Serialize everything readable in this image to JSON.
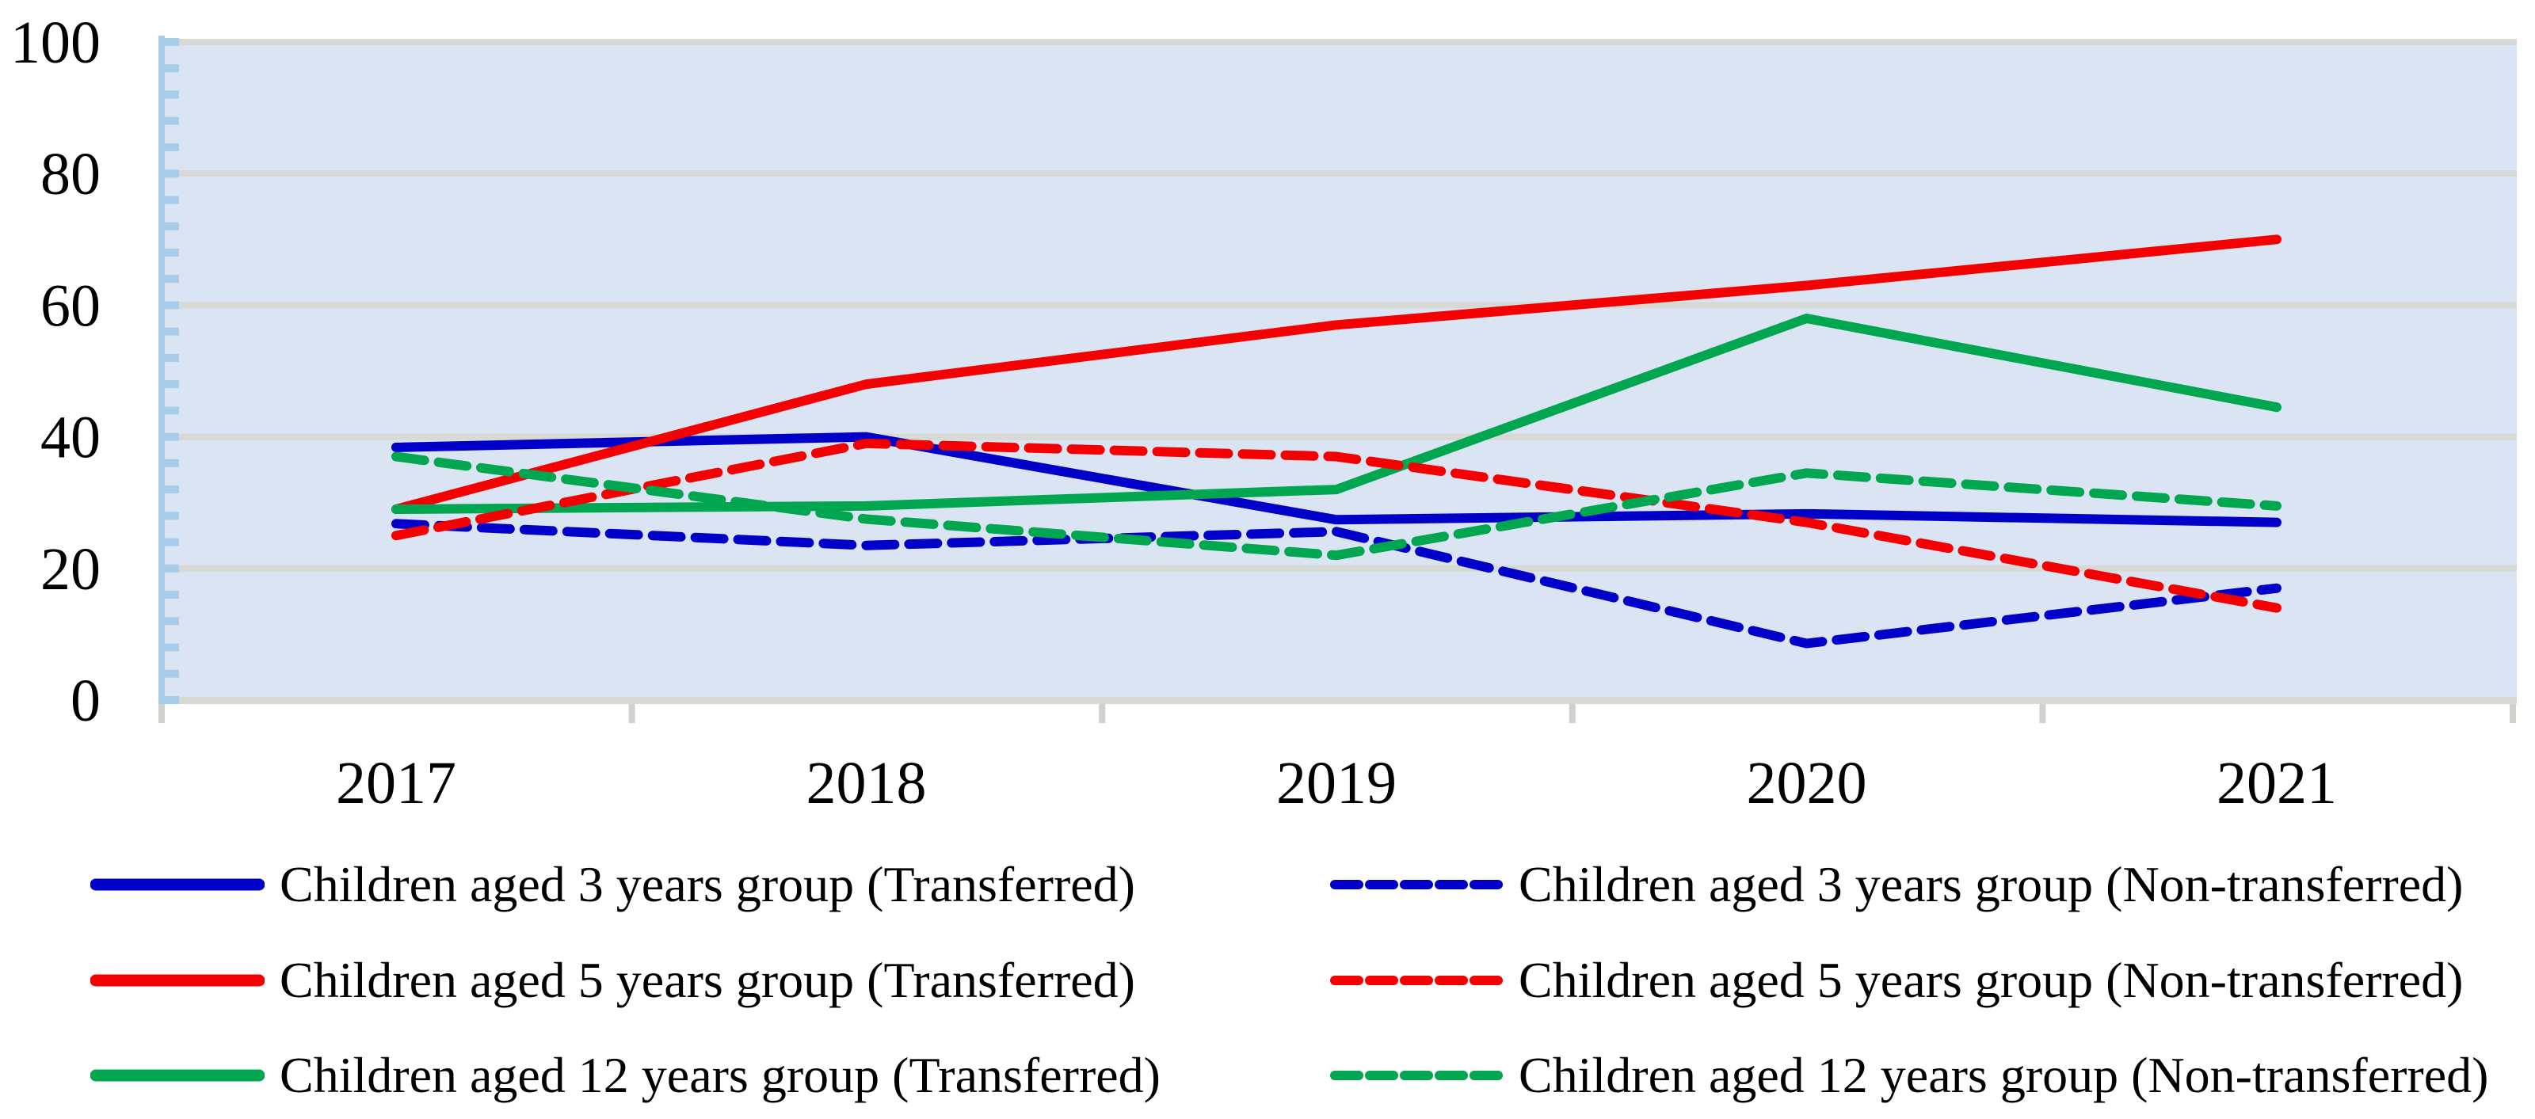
{
  "chart_data": {
    "type": "line",
    "title": "",
    "xlabel": "",
    "ylabel": "",
    "categories": [
      "2017",
      "2018",
      "2019",
      "2020",
      "2021"
    ],
    "y_axis": {
      "min": 0,
      "max": 100,
      "major_step": 20,
      "minor_step": 4,
      "tick_labels": [
        "100",
        "80",
        "60",
        "40",
        "20",
        "0"
      ]
    },
    "grid": "horizontal-major",
    "plot_background": "#dae4f2",
    "gridline_color": "#d8d8d4",
    "y_axis_line_color": "#a8cdea",
    "x_tick_color": "#d0d0cd",
    "series": [
      {
        "name": "Children aged 3 years group (Transferred)",
        "color": "#0000c8",
        "style": "solid",
        "values": [
          38.4,
          40.0,
          27.4,
          28.3,
          27.0
        ]
      },
      {
        "name": "Children aged 5 years group (Transferred)",
        "color": "#f40000",
        "style": "solid",
        "values": [
          29.0,
          48.0,
          57.0,
          63.0,
          70.0
        ]
      },
      {
        "name": "Children aged 12 years group (Transferred)",
        "color": "#00a650",
        "style": "solid",
        "values": [
          29.0,
          29.5,
          32.0,
          58.0,
          44.5
        ]
      },
      {
        "name": "Children aged 3 years group (Non-transferred)",
        "color": "#0000c8",
        "style": "dashed",
        "values": [
          26.8,
          23.5,
          25.6,
          8.6,
          17.0
        ]
      },
      {
        "name": "Children aged 5 years group (Non-transferred)",
        "color": "#f40000",
        "style": "dashed",
        "values": [
          25.0,
          39.0,
          37.0,
          27.0,
          14.0
        ]
      },
      {
        "name": "Children aged 12 years group (Non-transferred)",
        "color": "#00a650",
        "style": "dashed",
        "values": [
          37.0,
          27.5,
          22.0,
          34.5,
          29.5
        ]
      }
    ],
    "legend": {
      "position": "bottom",
      "columns": 2,
      "left_column_series": [
        0,
        1,
        2
      ],
      "right_column_series": [
        3,
        4,
        5
      ]
    }
  }
}
